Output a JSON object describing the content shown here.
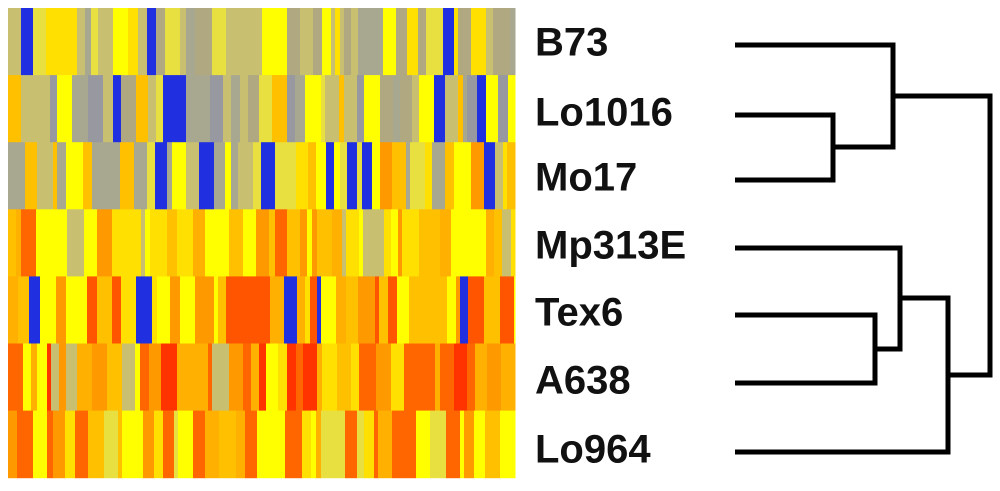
{
  "labels": [
    "B73",
    "Lo1016",
    "Mo17",
    "Mp313E",
    "Tex6",
    "A638",
    "Lo964"
  ]
}
